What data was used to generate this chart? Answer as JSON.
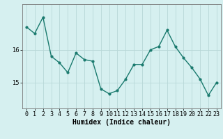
{
  "x": [
    0,
    1,
    2,
    3,
    4,
    5,
    6,
    7,
    8,
    9,
    10,
    11,
    12,
    13,
    14,
    15,
    16,
    17,
    18,
    19,
    20,
    21,
    22,
    23
  ],
  "y": [
    16.7,
    16.5,
    17.0,
    15.8,
    15.6,
    15.3,
    15.9,
    15.7,
    15.65,
    14.8,
    14.65,
    14.75,
    15.1,
    15.55,
    15.55,
    16.0,
    16.1,
    16.6,
    16.1,
    15.75,
    15.45,
    15.1,
    14.6,
    15.0
  ],
  "line_color": "#1a7a6e",
  "marker": "o",
  "markersize": 2.0,
  "linewidth": 1.0,
  "bg_color": "#d6f0f0",
  "plot_bg_color": "#d6f0f0",
  "grid_color": "#b8d8d8",
  "xlabel": "Humidex (Indice chaleur)",
  "xlabel_fontsize": 7,
  "yticks": [
    15,
    16
  ],
  "ylim": [
    14.2,
    17.4
  ],
  "xlim": [
    -0.5,
    23.5
  ],
  "tick_fontsize": 6,
  "xtick_labels": [
    "0",
    "1",
    "2",
    "3",
    "4",
    "5",
    "6",
    "7",
    "8",
    "9",
    "10",
    "11",
    "12",
    "13",
    "14",
    "15",
    "16",
    "17",
    "18",
    "19",
    "20",
    "21",
    "22",
    "23"
  ]
}
